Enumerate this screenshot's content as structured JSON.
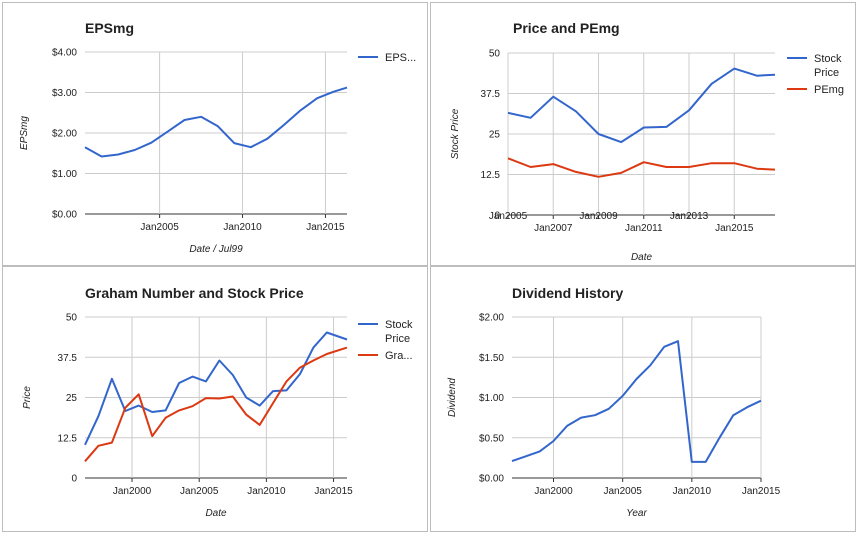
{
  "colors": {
    "blue": "#3366cc",
    "red": "#dc3912"
  },
  "chart_data": [
    {
      "type": "line",
      "title": "EPSmg",
      "xlabel": "Date / Jul99",
      "ylabel": "EPSmg",
      "xlim": [
        2000.5,
        2016.3
      ],
      "ylim": [
        0,
        4
      ],
      "yticks": [
        0,
        1,
        2,
        3,
        4
      ],
      "ytick_labels": [
        "$0.00",
        "$1.00",
        "$2.00",
        "$3.00",
        "$4.00"
      ],
      "xticks": [
        2005,
        2010,
        2015
      ],
      "xtick_labels": [
        "Jan2005",
        "Jan2010",
        "Jan2015"
      ],
      "legend": "right",
      "series": [
        {
          "name": "EPS...",
          "color": "#3366cc",
          "x": [
            2000.5,
            2001.5,
            2002.5,
            2003.5,
            2004.5,
            2005.5,
            2006.5,
            2007.5,
            2008.5,
            2009.5,
            2010.5,
            2011.5,
            2012.5,
            2013.5,
            2014.5,
            2015.5,
            2016.3
          ],
          "y": [
            1.65,
            1.42,
            1.47,
            1.58,
            1.76,
            2.04,
            2.32,
            2.4,
            2.17,
            1.75,
            1.65,
            1.86,
            2.2,
            2.56,
            2.86,
            3.02,
            3.12
          ]
        }
      ]
    },
    {
      "type": "line",
      "title": "Price and PEmg",
      "xlabel": "Date",
      "ylabel": "Stock Price",
      "xlim": [
        2005,
        2016.8
      ],
      "ylim": [
        0,
        50
      ],
      "yticks": [
        0,
        12.5,
        25,
        37.5,
        50
      ],
      "ytick_labels": [
        "0",
        "12.5",
        "25",
        "37.5",
        "50"
      ],
      "xticks": [
        2005,
        2007,
        2009,
        2011,
        2013,
        2015
      ],
      "xtick_labels": [
        "Jan2005",
        "Jan2007",
        "Jan2009",
        "Jan2011",
        "Jan2013",
        "Jan2015"
      ],
      "legend": "right",
      "series": [
        {
          "name": "Stock Price",
          "color": "#3366cc",
          "x": [
            2005,
            2006,
            2007,
            2008,
            2009,
            2010,
            2011,
            2012,
            2013,
            2014,
            2015,
            2016,
            2016.8
          ],
          "y": [
            31.5,
            30.0,
            36.5,
            32.0,
            25.0,
            22.5,
            27.0,
            27.2,
            32.3,
            40.5,
            45.2,
            43.0,
            43.3
          ]
        },
        {
          "name": "PEmg",
          "color": "#dc3912",
          "x": [
            2005,
            2006,
            2007,
            2008,
            2009,
            2010,
            2011,
            2012,
            2013,
            2014,
            2015,
            2016,
            2016.8
          ],
          "y": [
            17.5,
            14.8,
            15.7,
            13.3,
            11.8,
            13.0,
            16.3,
            14.8,
            14.8,
            16.0,
            16.0,
            14.3,
            14.0
          ]
        }
      ]
    },
    {
      "type": "line",
      "title": "Graham Number and Stock Price",
      "xlabel": "Date",
      "ylabel": "Price",
      "xlim": [
        1996.5,
        2016
      ],
      "ylim": [
        0,
        50
      ],
      "yticks": [
        0,
        12.5,
        25,
        37.5,
        50
      ],
      "ytick_labels": [
        "0",
        "12.5",
        "25",
        "37.5",
        "50"
      ],
      "xticks": [
        2000,
        2005,
        2010,
        2015
      ],
      "xtick_labels": [
        "Jan2000",
        "Jan2005",
        "Jan2010",
        "Jan2015"
      ],
      "legend": "right",
      "series": [
        {
          "name": "Stock Price",
          "color": "#3366cc",
          "x": [
            1996.5,
            1997.5,
            1998.5,
            1999.5,
            2000.5,
            2001.5,
            2002.5,
            2003.5,
            2004.5,
            2005.5,
            2006.5,
            2007.5,
            2008.5,
            2009.5,
            2010.5,
            2011.5,
            2012.5,
            2013.5,
            2014.5,
            2016
          ],
          "y": [
            10.3,
            19.2,
            30.8,
            20.8,
            22.5,
            20.5,
            21.0,
            29.5,
            31.5,
            30.0,
            36.5,
            32.0,
            25.0,
            22.5,
            27.0,
            27.2,
            32.3,
            40.5,
            45.2,
            43.0
          ]
        },
        {
          "name": "Gra...",
          "color": "#dc3912",
          "x": [
            1996.5,
            1997.5,
            1998.5,
            1999.5,
            2000.5,
            2001.5,
            2002.5,
            2003.5,
            2004.5,
            2005.5,
            2006.5,
            2007.5,
            2008.5,
            2009.5,
            2010.5,
            2011.5,
            2012.5,
            2013.5,
            2014.5,
            2016
          ],
          "y": [
            5.2,
            10.0,
            11.0,
            21.8,
            26.0,
            13.0,
            18.7,
            21.0,
            22.3,
            24.8,
            24.7,
            25.3,
            19.7,
            16.5,
            23.3,
            30.0,
            34.3,
            36.5,
            38.5,
            40.5
          ]
        }
      ]
    },
    {
      "type": "line",
      "title": "Dividend History",
      "xlabel": "Year",
      "ylabel": "Dividend",
      "xlim": [
        1997,
        2015
      ],
      "ylim": [
        0,
        2
      ],
      "yticks": [
        0,
        0.5,
        1,
        1.5,
        2
      ],
      "ytick_labels": [
        "$0.00",
        "$0.50",
        "$1.00",
        "$1.50",
        "$2.00"
      ],
      "xticks": [
        2000,
        2005,
        2010,
        2015
      ],
      "xtick_labels": [
        "Jan2000",
        "Jan2005",
        "Jan2010",
        "Jan2015"
      ],
      "legend": "none",
      "series": [
        {
          "name": "",
          "color": "#3366cc",
          "x": [
            1997,
            1998,
            1999,
            2000,
            2001,
            2002,
            2003,
            2004,
            2005,
            2006,
            2007,
            2008,
            2009,
            2010,
            2011,
            2012,
            2013,
            2014,
            2015
          ],
          "y": [
            0.21,
            0.27,
            0.33,
            0.46,
            0.65,
            0.75,
            0.78,
            0.86,
            1.02,
            1.23,
            1.4,
            1.63,
            1.7,
            0.2,
            0.2,
            0.5,
            0.78,
            0.88,
            0.96
          ]
        }
      ]
    }
  ]
}
